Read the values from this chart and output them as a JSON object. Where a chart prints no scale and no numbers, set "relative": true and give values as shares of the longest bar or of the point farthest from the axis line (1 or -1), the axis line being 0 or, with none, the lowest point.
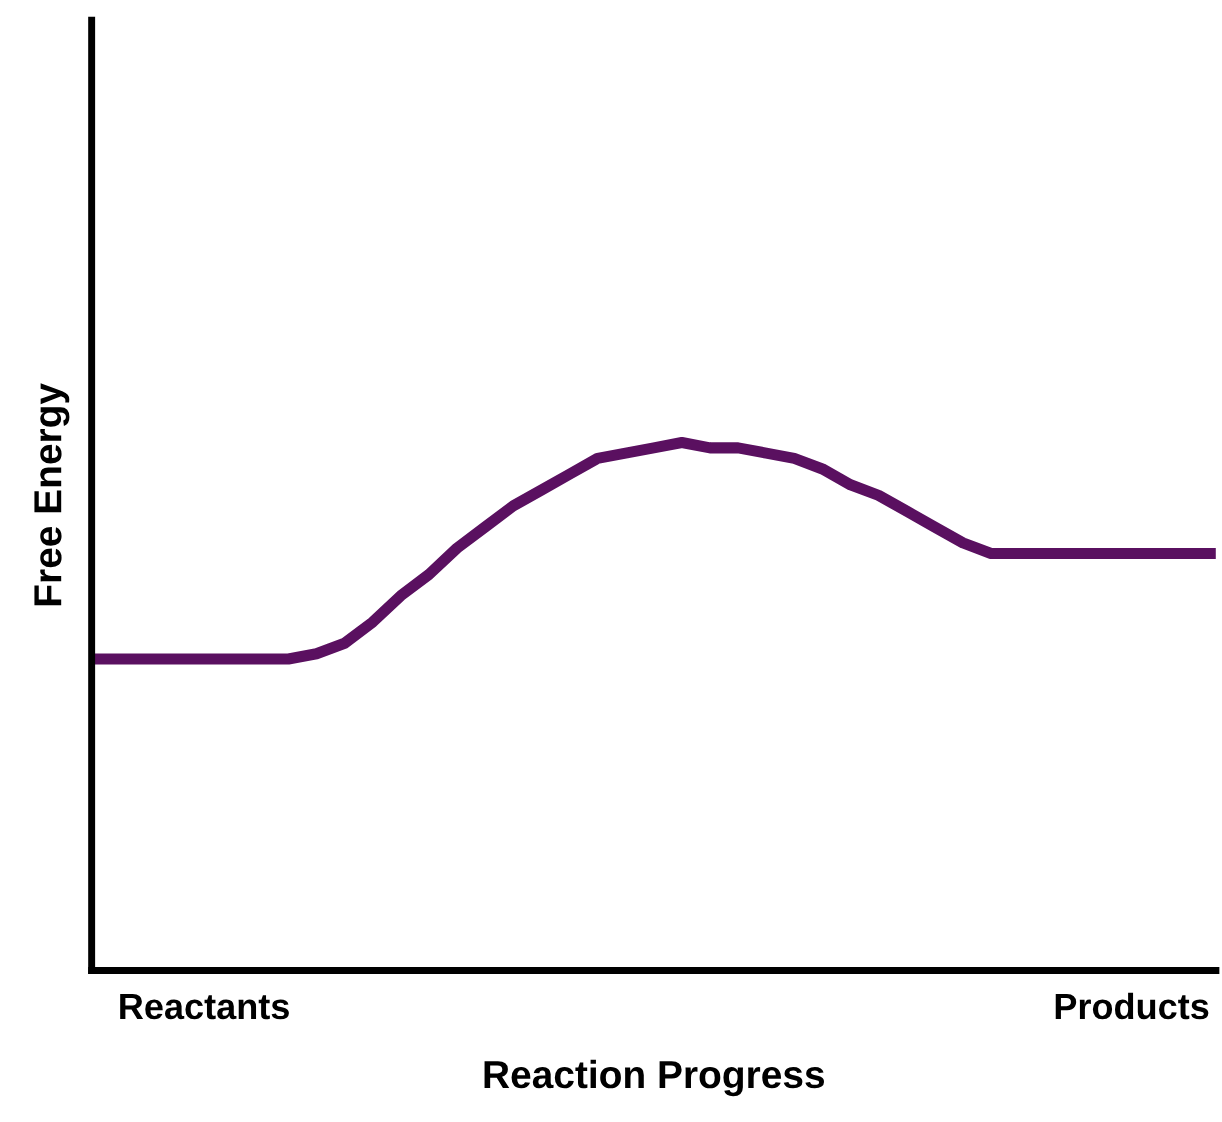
{
  "chart_data": {
    "type": "line",
    "relative": true,
    "xlabel": "Reaction Progress",
    "ylabel": "Free Energy",
    "categories": [
      null,
      null,
      null,
      null,
      "Reactants",
      null,
      null,
      null,
      null,
      null,
      null,
      null,
      null,
      null,
      null,
      null,
      null,
      null,
      null,
      null,
      null,
      null,
      null,
      null,
      null,
      null,
      null,
      null,
      null,
      null,
      null,
      null,
      null,
      null,
      null,
      null,
      null,
      "Products",
      null,
      null,
      null
    ],
    "series": [
      {
        "color": "#5a1060",
        "values": [
          0.59,
          0.59,
          0.59,
          0.59,
          0.59,
          0.59,
          0.59,
          0.59,
          0.6,
          0.62,
          0.66,
          0.71,
          0.75,
          0.8,
          0.84,
          0.88,
          0.91,
          0.94,
          0.97,
          0.98,
          0.99,
          1,
          0.99,
          0.99,
          0.98,
          0.97,
          0.95,
          0.92,
          0.9,
          0.87,
          0.84,
          0.81,
          0.79,
          0.79,
          0.79,
          0.79,
          0.79,
          0.79,
          0.79,
          0.79,
          0.79
        ]
      }
    ],
    "marker": "none",
    "line_style": "solid",
    "grid": false,
    "legend": false
  }
}
